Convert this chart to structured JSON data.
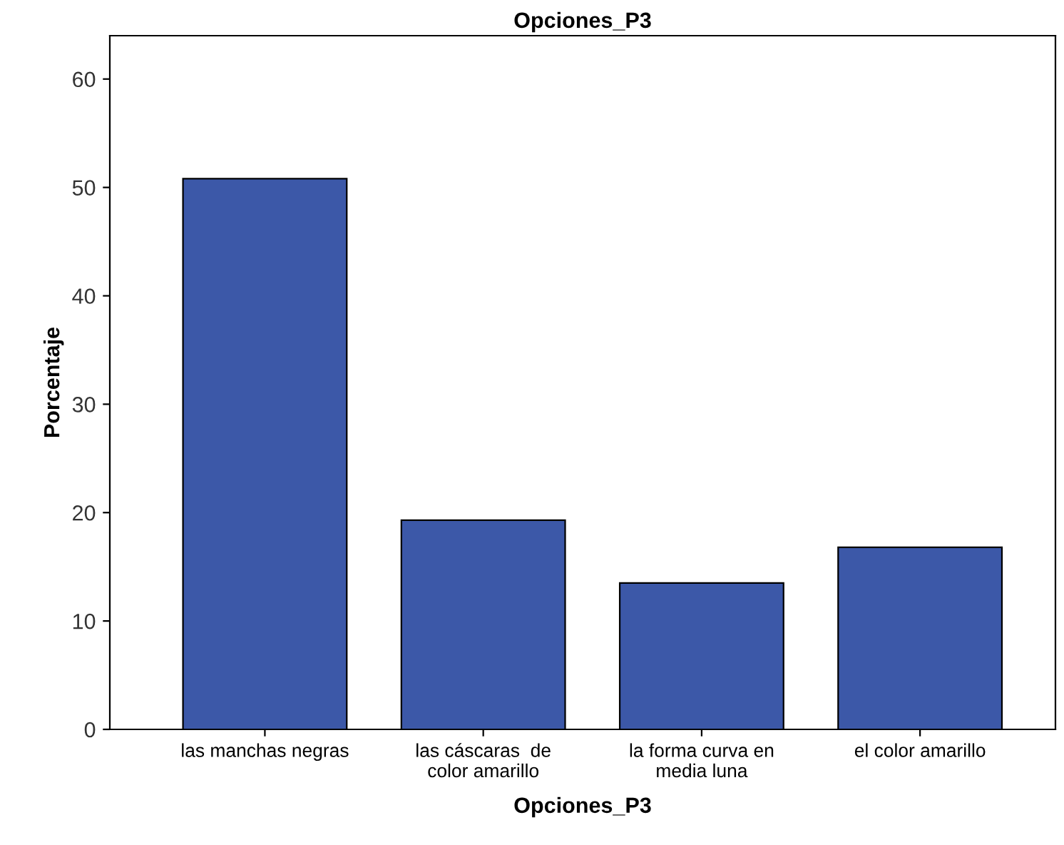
{
  "chart_data": {
    "type": "bar",
    "title": "Opciones_P3",
    "xlabel": "Opciones_P3",
    "ylabel": "Porcentaje",
    "categories": [
      "las manchas negras",
      "las cáscaras  de\ncolor amarillo",
      "la forma curva en\nmedia luna",
      "el color amarillo"
    ],
    "values": [
      50.8,
      19.3,
      13.5,
      16.8
    ],
    "color": "#3c58a8",
    "ylim": [
      0,
      64
    ],
    "yticks": [
      0,
      10,
      20,
      30,
      40,
      50,
      60
    ],
    "grid": false,
    "legend": false
  }
}
